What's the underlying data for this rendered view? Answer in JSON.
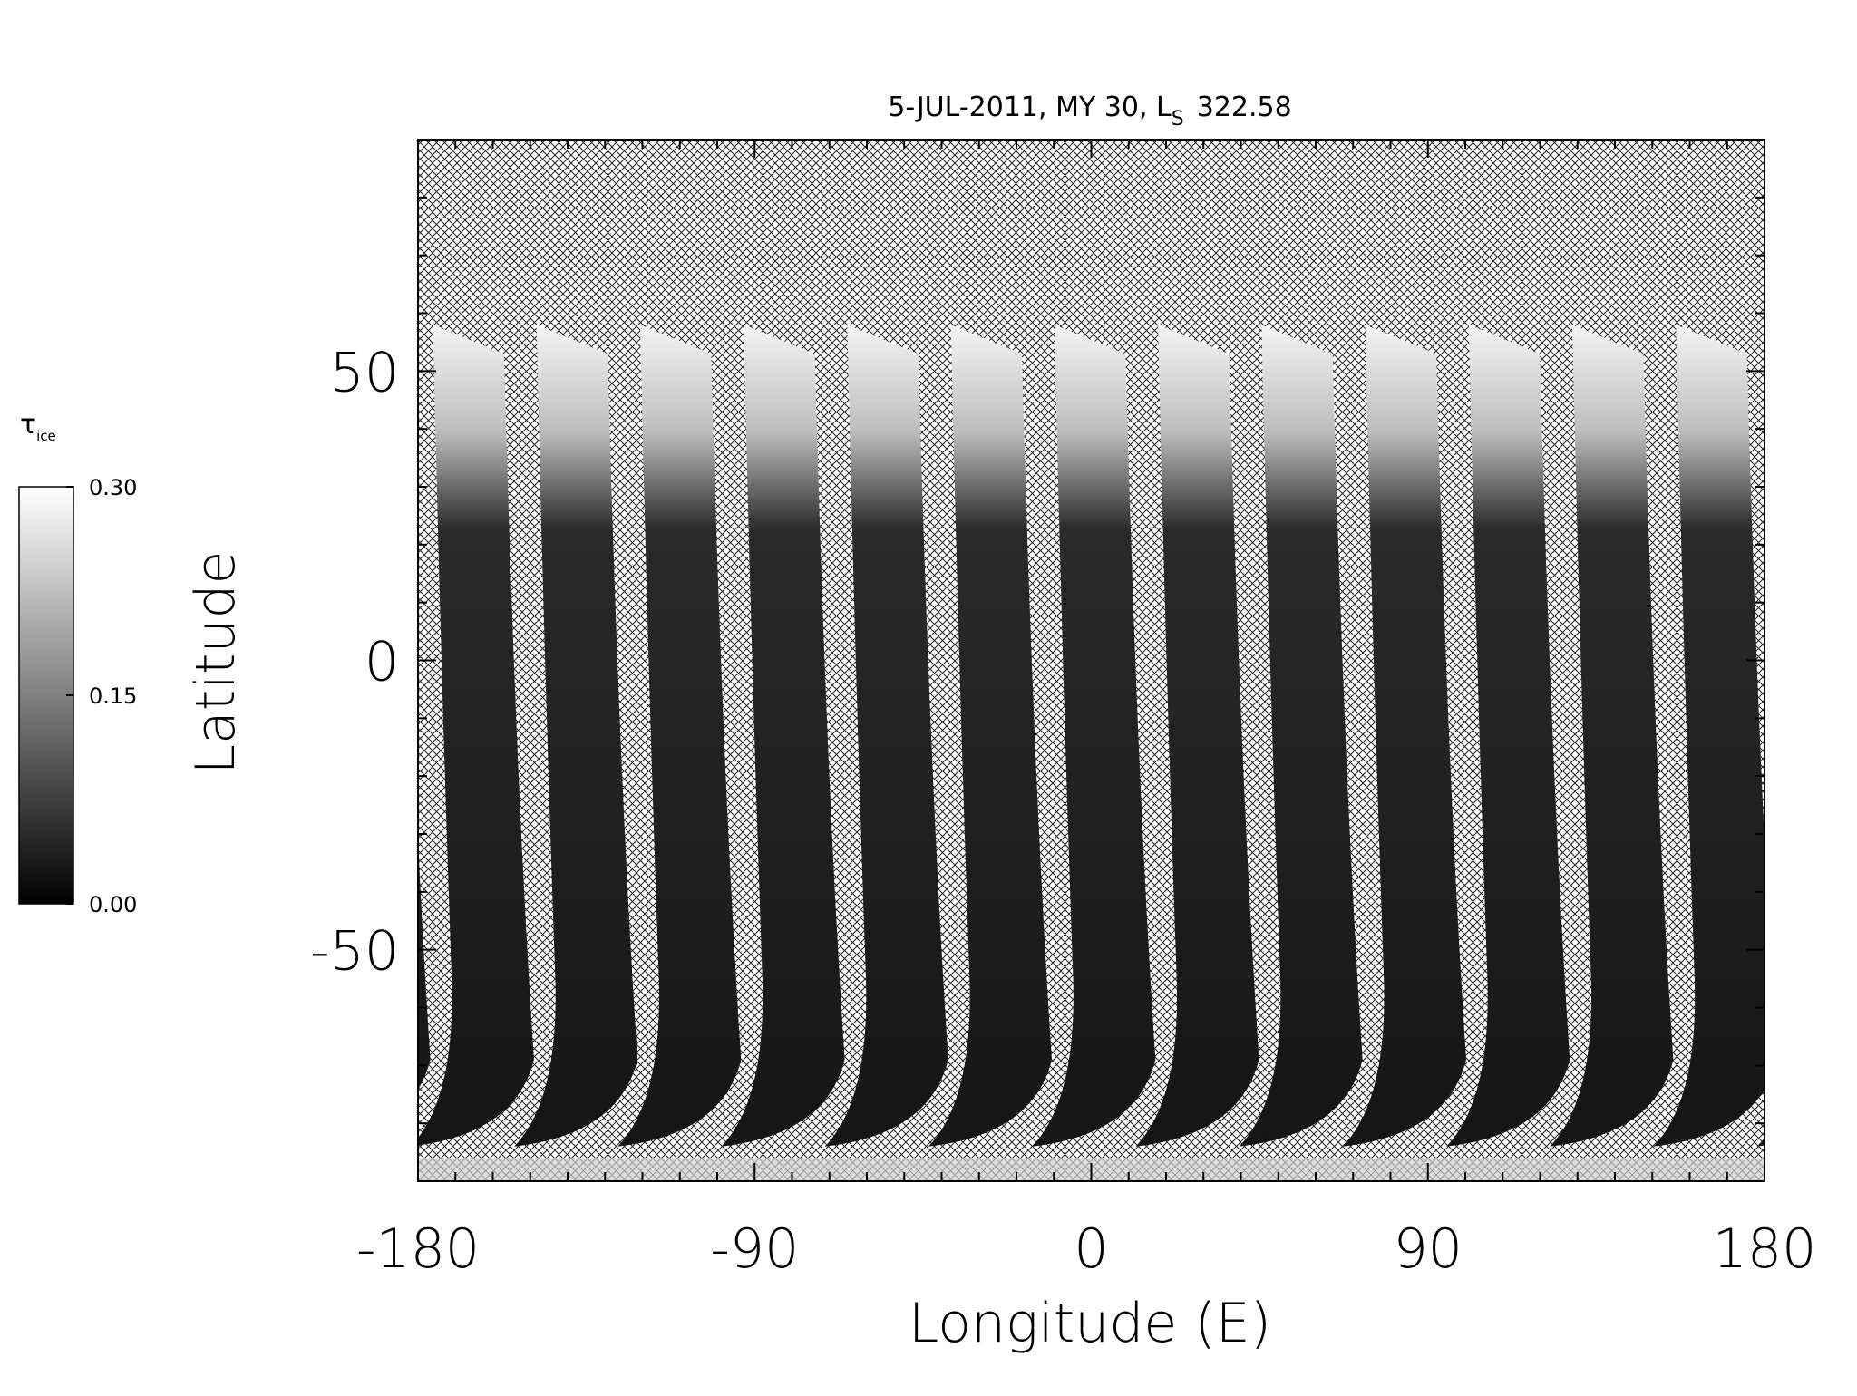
{
  "chart_data": {
    "type": "map",
    "title": "5-JUL-2011, MY 30,  L",
    "title_subscript": "S",
    "title_suffix": "322.58",
    "x_label": "Longitude (E)",
    "y_label": "Latitude",
    "xlim": [
      -180,
      180
    ],
    "xticks": [
      -180,
      -90,
      0,
      90,
      180
    ],
    "xminorticks": [
      -170,
      -160,
      -150,
      -140,
      -130,
      -120,
      -110,
      -100,
      -80,
      -70,
      -60,
      -50,
      -40,
      -30,
      -20,
      -10,
      10,
      20,
      30,
      40,
      50,
      60,
      70,
      80,
      100,
      110,
      120,
      130,
      140,
      150,
      160,
      170
    ],
    "ylim": [
      -90,
      90
    ],
    "yticks": [
      -50,
      0,
      50
    ],
    "yminorticks": [
      -80,
      -70,
      -60,
      -40,
      -30,
      -20,
      -10,
      10,
      20,
      30,
      40,
      60,
      70,
      80
    ],
    "colorbar": {
      "label": "τ",
      "label_subscript": "ice",
      "lim": [
        0,
        0.3
      ],
      "ticks": [
        {
          "value": 0,
          "label": "0.00"
        },
        {
          "value": 0.15,
          "label": "0.15"
        },
        {
          "value": 0.3,
          "label": "0.30"
        }
      ],
      "colors": [
        "#000000",
        "#ffffff"
      ]
    }
  }
}
